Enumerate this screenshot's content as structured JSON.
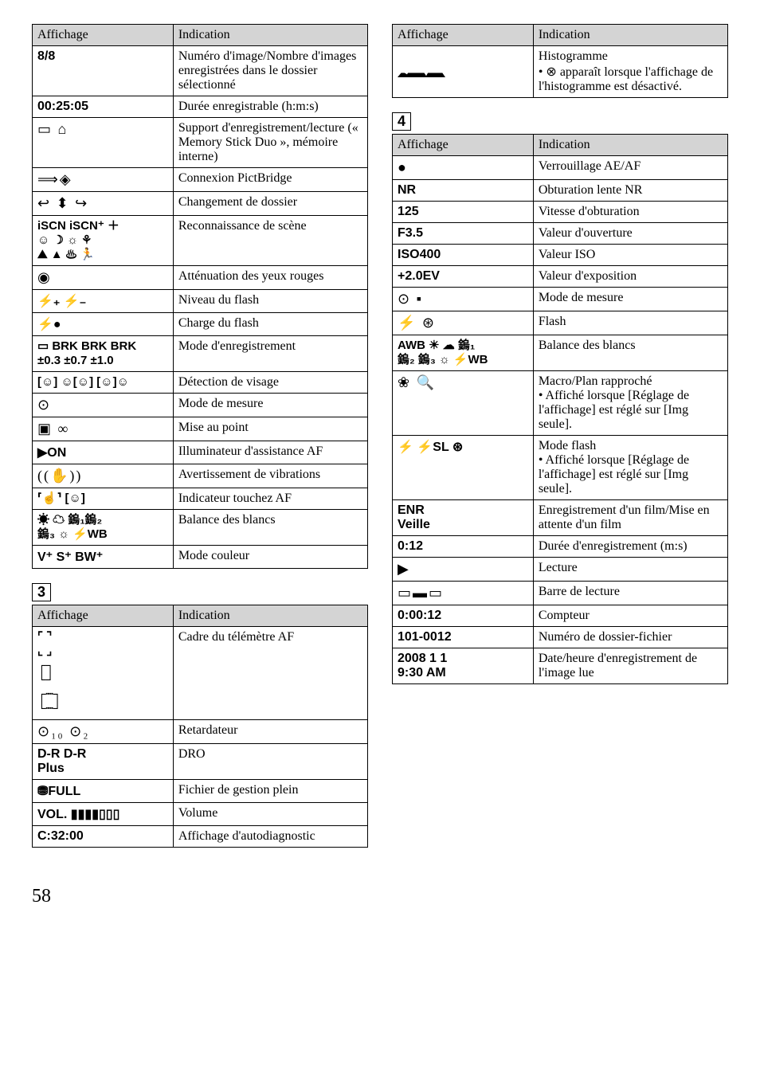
{
  "page_number": "58",
  "table1": {
    "headers": [
      "Affichage",
      "Indication"
    ],
    "rows": [
      {
        "disp": "8/8",
        "ind": "Numéro d'image/Nombre d'images enregistrées dans le dossier sélectionné",
        "disp_class": "arial-bold"
      },
      {
        "disp": "00:25:05",
        "ind": "Durée enregistrable (h:m:s)",
        "disp_class": "arial-bold"
      },
      {
        "disp": "▭ ⌂",
        "ind": "Support d'enregistrement/lecture (« Memory Stick Duo », mémoire interne)",
        "disp_class": "big-icons"
      },
      {
        "disp": "⟹◈",
        "ind": "Connexion PictBridge",
        "disp_class": "big-icons"
      },
      {
        "disp": "↩ ⬍ ↪",
        "ind": "Changement de dossier",
        "disp_class": "big-icons"
      },
      {
        "disp": "iSCN iSCN⁺ ＋\n☺ ☽ ☼ ⚘\n⛰ ▲ ♨ 🏃",
        "ind": "Reconnaissance de scène",
        "disp_class": "icon-cell"
      },
      {
        "disp": "◉",
        "ind": "Atténuation des yeux rouges",
        "disp_class": "big-icons"
      },
      {
        "disp": "⚡₊ ⚡₋",
        "ind": "Niveau du flash",
        "disp_class": "arial-bold"
      },
      {
        "disp": "⚡●",
        "ind": "Charge du flash",
        "disp_class": "arial-bold"
      },
      {
        "disp": "▭ BRK BRK BRK\n   ±0.3 ±0.7 ±1.0",
        "ind": "Mode d'enregistrement",
        "disp_class": "icon-cell"
      },
      {
        "disp": "[☺] ☺[☺] [☺]☺",
        "ind": "Détection de visage",
        "disp_class": "icon-cell"
      },
      {
        "disp": "⊙",
        "ind": "Mode de mesure",
        "disp_class": "big-icons"
      },
      {
        "disp": "▣ ∞",
        "ind": "Mise au point",
        "disp_class": "big-icons"
      },
      {
        "disp": "▶ON",
        "ind": "Illuminateur d'assistance AF",
        "disp_class": "arial-bold"
      },
      {
        "disp": "((✋))",
        "ind": "Avertissement de vibrations",
        "disp_class": "big-icons"
      },
      {
        "disp": "⸢☝⸣ [☺]",
        "ind": "Indicateur touchez AF",
        "disp_class": "icon-cell"
      },
      {
        "disp": "☀ ☁ 鎢₁鎢₂\n鎢₃ ☼ ⚡WB",
        "ind": "Balance des blancs",
        "disp_class": "icon-cell"
      },
      {
        "disp": "V⁺ S⁺ BW⁺",
        "ind": "Mode couleur",
        "disp_class": "arial-bold"
      }
    ]
  },
  "section3": "3",
  "table2": {
    "headers": [
      "Affichage",
      "Indication"
    ],
    "rows": [
      {
        "disp": "⌜  ⌝\n⌞  ⌟\n┌┐\n└┘\n┌┈┐\n└┈┘",
        "ind": "Cadre du télémètre AF",
        "disp_class": "icon-cell"
      },
      {
        "disp": "⊙₁₀ ⊙₂",
        "ind": "Retardateur",
        "disp_class": "big-icons"
      },
      {
        "disp": "D-R D-R\n       Plus",
        "ind": "DRO",
        "disp_class": "arial-bold"
      },
      {
        "disp": "⛃FULL",
        "ind": "Fichier de gestion plein",
        "disp_class": "arial-bold"
      },
      {
        "disp": "VOL. ▮▮▮▮▯▯▯",
        "ind": "Volume",
        "disp_class": "arial-bold"
      },
      {
        "disp": "C:32:00",
        "ind": "Affichage d'autodiagnostic",
        "disp_class": "arial-bold"
      }
    ]
  },
  "table3": {
    "headers": [
      "Affichage",
      "Indication"
    ],
    "rows": [
      {
        "disp_html": "histogram",
        "ind": "Histogramme\n• ⊗ apparaît lorsque l'affichage de l'histogramme est désactivé."
      }
    ]
  },
  "section4": "4",
  "table4": {
    "headers": [
      "Affichage",
      "Indication"
    ],
    "rows": [
      {
        "disp": "●",
        "ind": "Verrouillage AE/AF",
        "disp_class": "big-icons"
      },
      {
        "disp": "NR",
        "ind": "Obturation lente NR",
        "disp_class": "arial-bold icon-box-style"
      },
      {
        "disp": "125",
        "ind": "Vitesse d'obturation",
        "disp_class": "arial-bold"
      },
      {
        "disp": "F3.5",
        "ind": "Valeur d'ouverture",
        "disp_class": "arial-bold"
      },
      {
        "disp": "ISO400",
        "ind": "Valeur ISO",
        "disp_class": "arial-bold"
      },
      {
        "disp": "+2.0EV",
        "ind": "Valeur d'exposition",
        "disp_class": "arial-bold"
      },
      {
        "disp": "⊙ ▪",
        "ind": "Mode de mesure",
        "disp_class": "big-icons"
      },
      {
        "disp": "⚡ ⊛",
        "ind": "Flash",
        "disp_class": "big-icons"
      },
      {
        "disp": "AWB ☀ ☁ 鎢₁\n鎢₂ 鎢₃ ☼ ⚡WB",
        "ind": "Balance des blancs",
        "disp_class": "icon-cell"
      },
      {
        "disp": "❀ 🔍",
        "ind": "Macro/Plan rapproché\n• Affiché lorsque [Réglage de l'affichage] est réglé sur [Img seule].",
        "disp_class": "big-icons"
      },
      {
        "disp": "⚡ ⚡SL ⊛",
        "ind": "Mode flash\n• Affiché lorsque [Réglage de l'affichage] est réglé sur [Img seule].",
        "disp_class": "arial-bold"
      },
      {
        "disp": "ENR\nVeille",
        "ind": "Enregistrement d'un film/Mise en attente d'un film",
        "disp_class": "arial-bold"
      },
      {
        "disp": "0:12",
        "ind": "Durée d'enregistrement (m:s)",
        "disp_class": "arial-bold"
      },
      {
        "disp": "▶",
        "ind": "Lecture",
        "disp_class": "big-icons"
      },
      {
        "disp": "▭▬▭",
        "ind": "Barre de lecture",
        "disp_class": "big-icons"
      },
      {
        "disp": "0:00:12",
        "ind": "Compteur",
        "disp_class": "arial-bold"
      },
      {
        "disp": "101-0012",
        "ind": "Numéro de dossier-fichier",
        "disp_class": "arial-bold"
      },
      {
        "disp": "2008 1 1\n9:30 AM",
        "ind": "Date/heure d'enregistrement de l'image lue",
        "disp_class": "arial-bold"
      }
    ]
  }
}
